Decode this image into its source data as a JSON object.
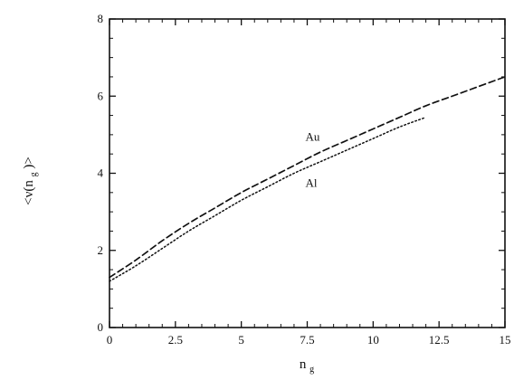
{
  "chart_data": {
    "type": "line",
    "title": "",
    "xlabel": "n",
    "xlabel_subscript": "g",
    "ylabel_prefix": "<ν(n",
    "ylabel_subscript": "g",
    "ylabel_suffix": ")>",
    "xlim": [
      0,
      15
    ],
    "ylim": [
      0,
      8
    ],
    "x_major_ticks": [
      0,
      2.5,
      5,
      7.5,
      10,
      12.5,
      15
    ],
    "x_tick_labels": [
      "0",
      "2.5",
      "5",
      "7.5",
      "10",
      "12.5",
      "15"
    ],
    "y_major_ticks": [
      0,
      2,
      4,
      6,
      8
    ],
    "y_tick_labels": [
      "0",
      "2",
      "4",
      "6",
      "8"
    ],
    "grid": false,
    "legend": "none",
    "series": [
      {
        "name": "Au",
        "line_style": "dashed",
        "color": "#111111",
        "x": [
          0,
          1,
          2,
          3,
          4,
          5,
          6,
          7,
          8,
          9,
          10,
          11,
          12,
          13,
          14,
          15
        ],
        "y": [
          1.3,
          1.75,
          2.25,
          2.7,
          3.1,
          3.5,
          3.85,
          4.2,
          4.55,
          4.85,
          5.15,
          5.45,
          5.75,
          6.0,
          6.25,
          6.5
        ],
        "annotation_text": "Au",
        "annotation_x": 7.5,
        "annotation_y": 4.85
      },
      {
        "name": "Al",
        "line_style": "dotted",
        "color": "#111111",
        "x": [
          0,
          1,
          2,
          3,
          4,
          5,
          6,
          7,
          8,
          9,
          10,
          11,
          12
        ],
        "y": [
          1.2,
          1.6,
          2.05,
          2.5,
          2.9,
          3.3,
          3.65,
          4.0,
          4.3,
          4.6,
          4.9,
          5.2,
          5.45
        ],
        "annotation_text": "Al",
        "annotation_x": 7.5,
        "annotation_y": 3.65
      }
    ]
  }
}
